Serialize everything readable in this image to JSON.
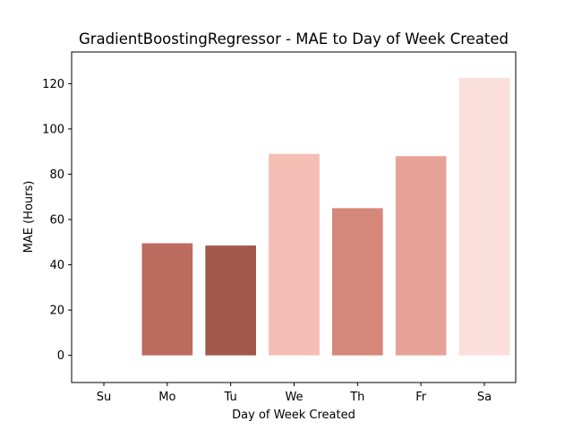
{
  "chart_data": {
    "type": "bar",
    "title": "GradientBoostingRegressor - MAE to Day of Week Created",
    "xlabel": "Day of Week Created",
    "ylabel": "MAE (Hours)",
    "categories": [
      "Su",
      "Mo",
      "Tu",
      "We",
      "Th",
      "Fr",
      "Sa"
    ],
    "values": [
      0,
      49.5,
      48.5,
      89,
      65,
      88,
      122.5
    ],
    "colors": [
      "#ffffff",
      "#bc6b5f",
      "#a2584b",
      "#f4beb5",
      "#d4877a",
      "#e7a298",
      "#fadfda"
    ],
    "ylim": [
      -12,
      134
    ],
    "yticks": [
      0,
      20,
      40,
      60,
      80,
      100,
      120
    ],
    "grid": false,
    "legend": "none"
  }
}
